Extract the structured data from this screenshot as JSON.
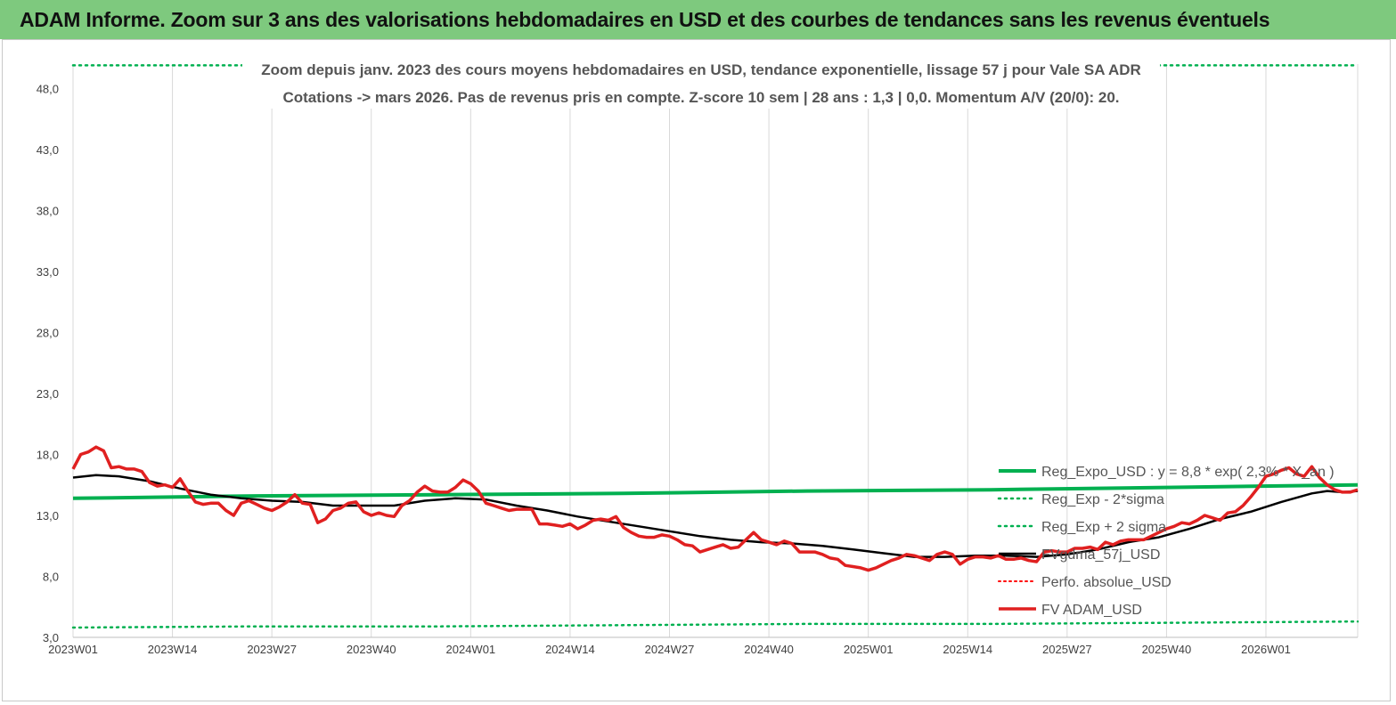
{
  "header": {
    "title": "ADAM Informe. Zoom sur 3 ans des valorisations hebdomadaires en USD et des courbes de tendances sans les revenus éventuels"
  },
  "chart_data": {
    "type": "line",
    "title_lines": [
      "Zoom depuis janv. 2023 des cours moyens hebdomadaires en USD, tendance exponentielle, lissage 57 j pour Vale SA ADR",
      "Cotations -> mars 2026. Pas de revenus pris en compte. Z-score 10 sem | 28 ans : 1,3 | 0,0. Momentum A/V (20/0): 20."
    ],
    "x_ticks": [
      "2023W01",
      "2023W14",
      "2023W27",
      "2023W40",
      "2024W01",
      "2024W14",
      "2024W27",
      "2024W40",
      "2025W01",
      "2025W14",
      "2025W27",
      "2025W40",
      "2026W01"
    ],
    "x_range_weeks": [
      0,
      168
    ],
    "y_ticks": [
      "3,0",
      "8,0",
      "13,0",
      "18,0",
      "23,0",
      "28,0",
      "33,0",
      "38,0",
      "43,0",
      "48,0"
    ],
    "ylim": [
      3,
      50
    ],
    "grid": "vertical",
    "legend_position": "right",
    "colors": {
      "reg_expo": "#00b050",
      "sigma": "#00b050",
      "fvgdma": "#000000",
      "perfo": "#ff0000",
      "fvadam": "#e02020",
      "header_bg": "#7ec97e"
    },
    "series": [
      {
        "name": "Reg_Expo_USD : y = 8,8 * exp( 2,3% * X_an )",
        "style": "solid-thick",
        "x": [
          0,
          24,
          48,
          72,
          96,
          120,
          144,
          168
        ],
        "y": [
          14.4,
          14.6,
          14.7,
          14.8,
          15.0,
          15.1,
          15.3,
          15.5
        ]
      },
      {
        "name": "Reg_Exp - 2*sigma",
        "style": "dotted",
        "x": [
          0,
          24,
          48,
          72,
          96,
          120,
          144,
          168
        ],
        "y": [
          3.8,
          3.9,
          3.9,
          4.0,
          4.1,
          4.1,
          4.2,
          4.3
        ]
      },
      {
        "name": "Reg_Exp + 2 sigma",
        "style": "dotted",
        "x": [
          0,
          168
        ],
        "y": [
          49.9,
          49.9
        ]
      },
      {
        "name": "FVgdma_57j_USD",
        "style": "solid",
        "x": [
          0,
          3,
          6,
          10,
          14,
          18,
          22,
          26,
          30,
          34,
          38,
          42,
          46,
          50,
          54,
          58,
          62,
          66,
          70,
          74,
          78,
          82,
          86,
          90,
          94,
          98,
          102,
          106,
          110,
          114,
          118,
          122,
          126,
          130,
          134,
          138,
          142,
          146,
          150,
          154,
          158,
          162,
          164,
          166,
          168
        ],
        "y": [
          16.1,
          16.3,
          16.2,
          15.8,
          15.2,
          14.7,
          14.4,
          14.2,
          14.1,
          13.8,
          13.8,
          13.8,
          14.2,
          14.4,
          14.3,
          13.8,
          13.4,
          12.9,
          12.5,
          12.1,
          11.7,
          11.3,
          11.0,
          10.8,
          10.7,
          10.5,
          10.2,
          9.9,
          9.6,
          9.6,
          9.7,
          9.7,
          9.6,
          9.8,
          10.2,
          10.8,
          11.2,
          11.9,
          12.7,
          13.3,
          14.1,
          14.8,
          15.0,
          14.9,
          15.0
        ]
      },
      {
        "name": "Perfo. absolue_USD",
        "style": "dotted",
        "x": [],
        "y": []
      },
      {
        "name": "FV ADAM_USD",
        "style": "solid-thick",
        "x": [
          0,
          1,
          2,
          3,
          4,
          5,
          6,
          7,
          8,
          9,
          10,
          11,
          12,
          13,
          14,
          15,
          16,
          17,
          18,
          19,
          20,
          21,
          22,
          23,
          24,
          25,
          26,
          27,
          28,
          29,
          30,
          31,
          32,
          33,
          34,
          35,
          36,
          37,
          38,
          39,
          40,
          41,
          42,
          43,
          44,
          45,
          46,
          47,
          48,
          49,
          50,
          51,
          52,
          53,
          54,
          55,
          56,
          57,
          58,
          59,
          60,
          61,
          62,
          63,
          64,
          65,
          66,
          67,
          68,
          69,
          70,
          71,
          72,
          73,
          74,
          75,
          76,
          77,
          78,
          79,
          80,
          81,
          82,
          83,
          84,
          85,
          86,
          87,
          88,
          89,
          90,
          91,
          92,
          93,
          94,
          95,
          96,
          97,
          98,
          99,
          100,
          101,
          102,
          103,
          104,
          105,
          106,
          107,
          108,
          109,
          110,
          111,
          112,
          113,
          114,
          115,
          116,
          117,
          118,
          119,
          120,
          121,
          122,
          123,
          124,
          125,
          126,
          127,
          128,
          129,
          130,
          131,
          132,
          133,
          134,
          135,
          136,
          137,
          138,
          139,
          140,
          141,
          142,
          143,
          144,
          145,
          146,
          147,
          148,
          149,
          150,
          151,
          152,
          153,
          154,
          155,
          156,
          157,
          158,
          159,
          160,
          161,
          162,
          163,
          164,
          165,
          166,
          167,
          168
        ],
        "y": [
          16.8,
          18.0,
          18.2,
          18.6,
          18.3,
          16.9,
          17.0,
          16.8,
          16.8,
          16.6,
          15.7,
          15.4,
          15.5,
          15.3,
          16.0,
          15.0,
          14.1,
          13.9,
          14.0,
          14.0,
          13.4,
          13.0,
          14.0,
          14.2,
          13.9,
          13.6,
          13.4,
          13.7,
          14.1,
          14.7,
          14.0,
          13.9,
          12.4,
          12.7,
          13.4,
          13.6,
          14.0,
          14.1,
          13.3,
          13.0,
          13.2,
          13.0,
          12.9,
          13.8,
          14.2,
          14.9,
          15.4,
          15.0,
          14.9,
          14.9,
          15.3,
          15.9,
          15.6,
          15.0,
          14.0,
          13.8,
          13.6,
          13.4,
          13.5,
          13.5,
          13.5,
          12.3,
          12.3,
          12.2,
          12.1,
          12.3,
          11.9,
          12.2,
          12.6,
          12.7,
          12.6,
          12.9,
          12.0,
          11.6,
          11.3,
          11.2,
          11.2,
          11.4,
          11.3,
          11.0,
          10.6,
          10.5,
          10.0,
          10.2,
          10.4,
          10.6,
          10.3,
          10.4,
          11.0,
          11.6,
          11.0,
          10.8,
          10.6,
          10.9,
          10.7,
          10.0,
          10.0,
          10.0,
          9.8,
          9.5,
          9.4,
          8.9,
          8.8,
          8.7,
          8.5,
          8.7,
          9.0,
          9.3,
          9.5,
          9.8,
          9.7,
          9.5,
          9.3,
          9.8,
          10.0,
          9.8,
          9.0,
          9.4,
          9.6,
          9.6,
          9.5,
          9.7,
          9.4,
          9.4,
          9.5,
          9.3,
          9.2,
          10.0,
          10.1,
          10.0,
          10.0,
          10.3,
          10.3,
          10.4,
          10.2,
          10.8,
          10.6,
          10.9,
          11.0,
          11.0,
          11.0,
          11.3,
          11.6,
          11.9,
          12.1,
          12.4,
          12.3,
          12.6,
          13.0,
          12.8,
          12.6,
          13.2,
          13.3,
          13.8,
          14.5,
          15.3,
          16.2,
          16.4,
          16.7,
          16.9,
          16.4,
          16.2,
          17.0,
          16.1,
          15.5,
          15.1,
          14.9,
          14.9,
          15.1
        ]
      }
    ]
  }
}
